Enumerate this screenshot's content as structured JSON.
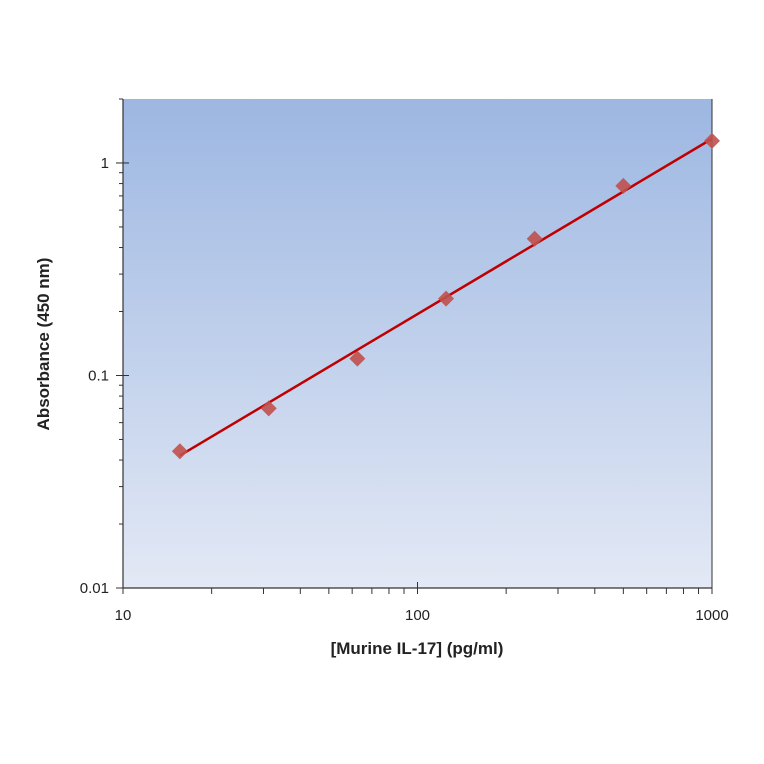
{
  "chart_data": {
    "type": "scatter",
    "title": "",
    "xlabel": "[Murine IL-17] (pg/ml)",
    "ylabel": "Absorbance (450 nm)",
    "xscale": "log",
    "yscale": "log",
    "xlim": [
      10,
      1000
    ],
    "ylim": [
      0.01,
      2
    ],
    "xticks": [
      {
        "value": 10,
        "label": "10"
      },
      {
        "value": 100,
        "label": "100"
      },
      {
        "value": 1000,
        "label": "1000"
      }
    ],
    "yticks": [
      {
        "value": 0.01,
        "label": "0.01"
      },
      {
        "value": 0.1,
        "label": "0.1"
      },
      {
        "value": 1,
        "label": "1"
      }
    ],
    "grid": false,
    "legend": "none",
    "series": [
      {
        "marker": "diamond",
        "color": "#c0504d",
        "x": [
          15.6,
          31.25,
          62.5,
          125,
          250,
          500,
          1000
        ],
        "y": [
          0.044,
          0.07,
          0.12,
          0.23,
          0.44,
          0.78,
          1.27
        ]
      }
    ],
    "fit_line": {
      "type": "power",
      "color": "#c00000",
      "x": [
        15.6,
        1000
      ],
      "y": [
        0.042,
        1.3
      ]
    },
    "background_gradient": [
      "#9db7e2",
      "#e3e9f5"
    ]
  }
}
